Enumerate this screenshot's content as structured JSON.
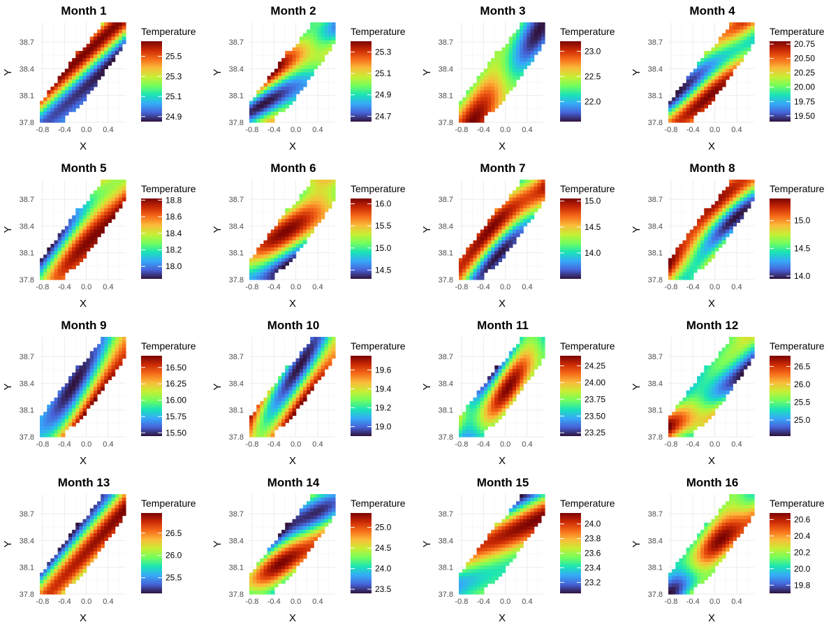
{
  "chart_data": {
    "type": "heatmap",
    "layout": "4x4 facet grid",
    "shared": {
      "xlabel": "X",
      "ylabel": "Y",
      "x_ticks": [
        "-0.8",
        "-0.4",
        "0.0",
        "0.4"
      ],
      "y_ticks": [
        "37.8",
        "38.1",
        "38.4",
        "38.7"
      ],
      "xlim": [
        -0.85,
        0.72
      ],
      "ylim": [
        37.8,
        38.92
      ],
      "legend_title": "Temperature",
      "colormap": "turbo",
      "colormap_stops": [
        "#30123b",
        "#4662d7",
        "#36aaf9",
        "#1ae4b6",
        "#72fe5e",
        "#c7ef34",
        "#fabb3a",
        "#f66b19",
        "#cb2a04",
        "#7a0403"
      ]
    },
    "panels": [
      {
        "title": "Month 1",
        "vmin": 24.85,
        "vmax": 25.65,
        "legend_ticks": [
          "24.9",
          "25.1",
          "25.3",
          "25.5"
        ],
        "seed": 11
      },
      {
        "title": "Month 2",
        "vmin": 24.65,
        "vmax": 25.4,
        "legend_ticks": [
          "24.7",
          "24.9",
          "25.1",
          "25.3"
        ],
        "seed": 23
      },
      {
        "title": "Month 3",
        "vmin": 21.6,
        "vmax": 23.2,
        "legend_ticks": [
          "22.0",
          "22.5",
          "23.0"
        ],
        "seed": 37
      },
      {
        "title": "Month 4",
        "vmin": 19.4,
        "vmax": 20.8,
        "legend_ticks": [
          "19.50",
          "19.75",
          "20.00",
          "20.25",
          "20.50",
          "20.75"
        ],
        "seed": 41
      },
      {
        "title": "Month 5",
        "vmin": 17.85,
        "vmax": 18.82,
        "legend_ticks": [
          "18.0",
          "18.2",
          "18.4",
          "18.6",
          "18.8"
        ],
        "seed": 53
      },
      {
        "title": "Month 6",
        "vmin": 14.3,
        "vmax": 16.12,
        "legend_ticks": [
          "14.5",
          "15.0",
          "15.5",
          "16.0"
        ],
        "seed": 67
      },
      {
        "title": "Month 7",
        "vmin": 13.5,
        "vmax": 15.05,
        "legend_ticks": [
          "14.0",
          "14.5",
          "15.0"
        ],
        "seed": 71
      },
      {
        "title": "Month 8",
        "vmin": 13.95,
        "vmax": 15.4,
        "legend_ticks": [
          "14.0",
          "14.5",
          "15.0"
        ],
        "seed": 83
      },
      {
        "title": "Month 9",
        "vmin": 15.45,
        "vmax": 16.68,
        "legend_ticks": [
          "15.50",
          "15.75",
          "16.00",
          "16.25",
          "16.50"
        ],
        "seed": 97
      },
      {
        "title": "Month 10",
        "vmin": 18.9,
        "vmax": 19.75,
        "legend_ticks": [
          "19.0",
          "19.2",
          "19.4",
          "19.6"
        ],
        "seed": 101
      },
      {
        "title": "Month 11",
        "vmin": 23.2,
        "vmax": 24.4,
        "legend_ticks": [
          "23.25",
          "23.50",
          "23.75",
          "24.00",
          "24.25"
        ],
        "seed": 113
      },
      {
        "title": "Month 12",
        "vmin": 24.55,
        "vmax": 26.8,
        "legend_ticks": [
          "25.0",
          "25.5",
          "26.0",
          "26.5"
        ],
        "seed": 127
      },
      {
        "title": "Month 13",
        "vmin": 25.15,
        "vmax": 26.95,
        "legend_ticks": [
          "25.5",
          "26.0",
          "26.5"
        ],
        "seed": 131
      },
      {
        "title": "Month 14",
        "vmin": 23.4,
        "vmax": 25.35,
        "legend_ticks": [
          "23.5",
          "24.0",
          "24.5",
          "25.0"
        ],
        "seed": 149
      },
      {
        "title": "Month 15",
        "vmin": 23.05,
        "vmax": 24.15,
        "legend_ticks": [
          "23.2",
          "23.4",
          "23.6",
          "23.8",
          "24.0"
        ],
        "seed": 151
      },
      {
        "title": "Month 16",
        "vmin": 19.7,
        "vmax": 20.68,
        "legend_ticks": [
          "19.8",
          "20.0",
          "20.2",
          "20.4",
          "20.6"
        ],
        "seed": 163
      }
    ]
  }
}
